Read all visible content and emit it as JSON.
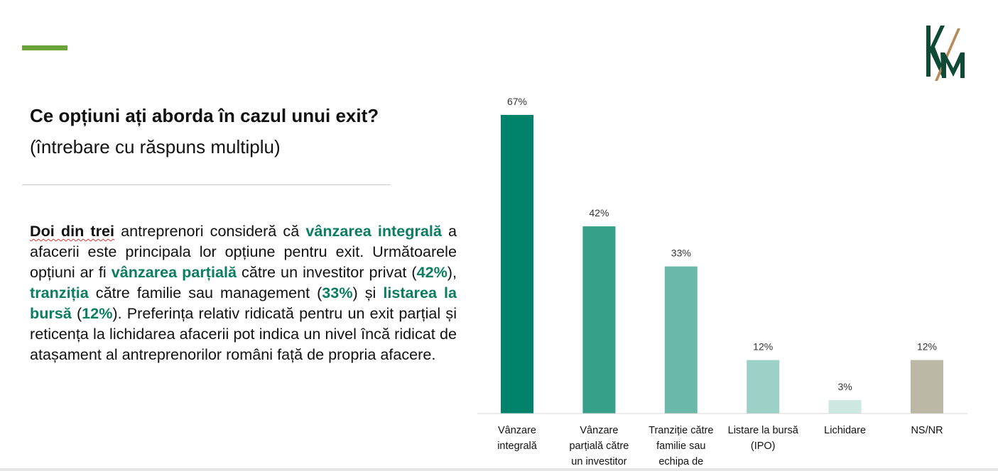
{
  "question": {
    "title": "Ce opțiuni ați aborda în cazul unui exit?",
    "subtitle": "(întrebare cu răspuns multiplu)"
  },
  "summary": {
    "s1": "Doi din trei",
    "s2": " antreprenori consideră că ",
    "s3": "vânzarea integrală",
    "s4": " a afacerii este principala lor opțiune pentru exit. Următoarele opțiuni ar fi ",
    "s5": "vânzarea parțială",
    "s6": " către un investitor privat (",
    "s7": "42%",
    "s8": "), ",
    "s9": "tranziția",
    "s10": " către familie sau management (",
    "s11": "33%",
    "s12": ") și ",
    "s13": "listarea la bursă",
    "s14": " (",
    "s15": "12%",
    "s16": "). Preferința relativ ridicată pentru un exit parțial și reticența la lichidarea afacerii pot indica un nivel încă ridicat de atașament al antreprenorilor români față de propria afacere."
  },
  "logo": {
    "letters": "KM"
  },
  "colors": {
    "accent": "#6aa43a",
    "highlight": "#0a7d63"
  },
  "chart_data": {
    "type": "bar",
    "categories": [
      [
        "Vânzare",
        "integrală"
      ],
      [
        "Vânzare",
        "parțială către",
        "un investitor"
      ],
      [
        "Tranziție către",
        "familie sau",
        "echipa de"
      ],
      [
        "Listare la bursă",
        "(IPO)"
      ],
      [
        "Lichidare"
      ],
      [
        "NS/NR"
      ]
    ],
    "values": [
      67,
      42,
      33,
      12,
      3,
      12
    ],
    "data_labels": [
      "67%",
      "42%",
      "33%",
      "12%",
      "3%",
      "12%"
    ],
    "colors": [
      "#00836a",
      "#369f88",
      "#69b8a8",
      "#9dd0c6",
      "#cde7e1",
      "#bcb8a6"
    ],
    "ylim": [
      0,
      67
    ],
    "grid": false,
    "legend": "none",
    "title": "",
    "xlabel": "",
    "ylabel": ""
  }
}
